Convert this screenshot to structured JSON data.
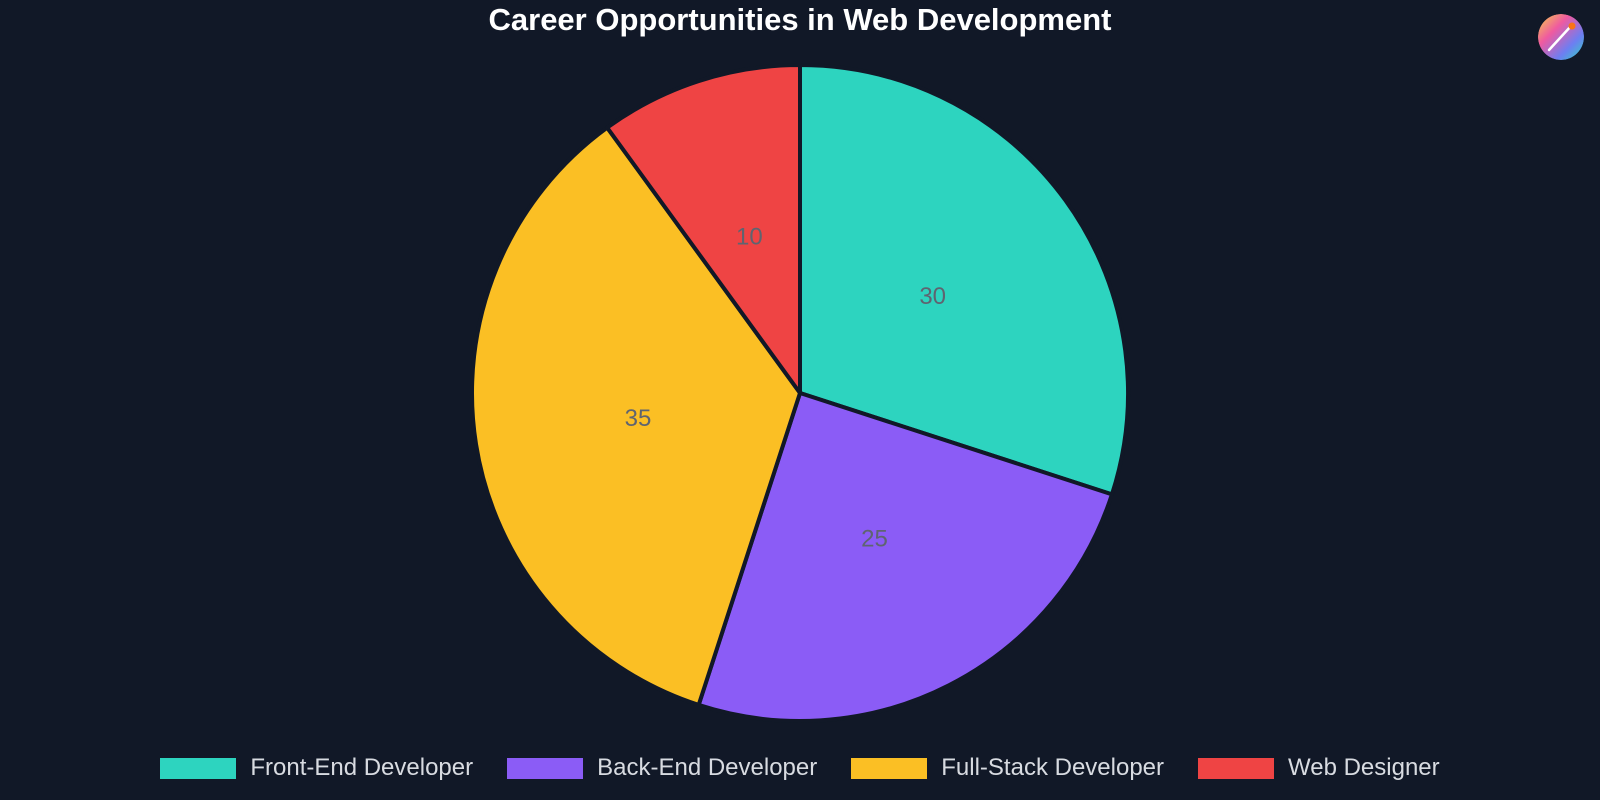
{
  "page": {
    "background": "#111827",
    "logo_icon": "color-palette-logo-icon"
  },
  "chart_data": {
    "type": "pie",
    "title": "Career Opportunities in Web Development",
    "legend_position": "bottom",
    "slice_border_color": "#111827",
    "series": [
      {
        "label": "Front-End Developer",
        "value": 30,
        "color": "#2dd4bf"
      },
      {
        "label": "Back-End Developer",
        "value": 25,
        "color": "#8b5cf6"
      },
      {
        "label": "Full-Stack Developer",
        "value": 35,
        "color": "#fbbf24"
      },
      {
        "label": "Web Designer",
        "value": 10,
        "color": "#ef4444"
      }
    ]
  }
}
